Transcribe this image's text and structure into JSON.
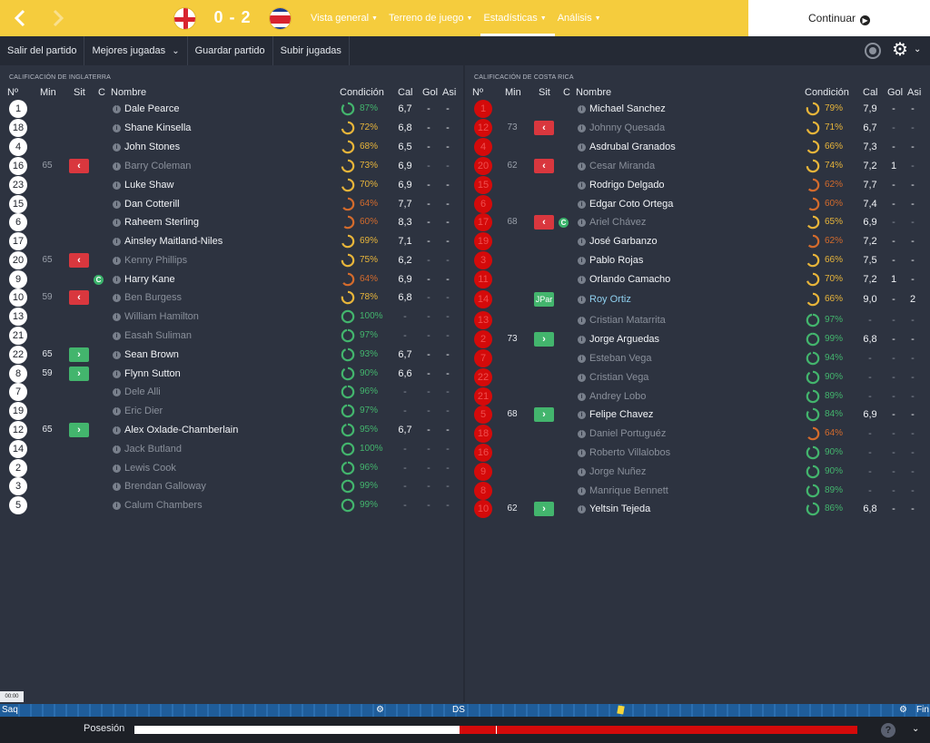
{
  "header": {
    "score": "0 - 2",
    "home_flag": "england-flag",
    "away_flag": "costa-rica-flag",
    "nav": [
      {
        "label": "Vista general",
        "active": false
      },
      {
        "label": "Terreno de juego",
        "active": false
      },
      {
        "label": "Estadísticas",
        "active": true
      },
      {
        "label": "Análisis",
        "active": false
      }
    ],
    "continue_label": "Continuar"
  },
  "toolbar": {
    "items": [
      "Salir del partido",
      "Mejores jugadas",
      "Guardar partido",
      "Subir jugadas"
    ]
  },
  "columns": {
    "no": "Nº",
    "min": "Min",
    "sit": "Sit",
    "cap": "C",
    "name": "Nombre",
    "condition": "Condición",
    "rating": "Cal",
    "goals": "Gol",
    "assists": "Asi"
  },
  "home": {
    "title": "Calificación de Inglaterra",
    "players": [
      {
        "no": "1",
        "min": "",
        "sit": "",
        "cap": false,
        "name": "Dale Pearce",
        "active": true,
        "cond": "87%",
        "condv": 0.87,
        "cal": "6,7",
        "gol": "-",
        "asi": "-"
      },
      {
        "no": "18",
        "min": "",
        "sit": "",
        "cap": false,
        "name": "Shane Kinsella",
        "active": true,
        "cond": "72%",
        "condv": 0.72,
        "cal": "6,8",
        "gol": "-",
        "asi": "-"
      },
      {
        "no": "4",
        "min": "",
        "sit": "",
        "cap": false,
        "name": "John Stones",
        "active": true,
        "cond": "68%",
        "condv": 0.68,
        "cal": "6,5",
        "gol": "-",
        "asi": "-"
      },
      {
        "no": "16",
        "min": "65",
        "sit": "out",
        "cap": false,
        "name": "Barry Coleman",
        "active": false,
        "cond": "73%",
        "condv": 0.73,
        "cal": "6,9",
        "gol": "-",
        "asi": "-"
      },
      {
        "no": "23",
        "min": "",
        "sit": "",
        "cap": false,
        "name": "Luke Shaw",
        "active": true,
        "cond": "70%",
        "condv": 0.7,
        "cal": "6,9",
        "gol": "-",
        "asi": "-"
      },
      {
        "no": "15",
        "min": "",
        "sit": "",
        "cap": false,
        "name": "Dan Cotterill",
        "active": true,
        "cond": "64%",
        "condv": 0.64,
        "cal": "7,7",
        "gol": "-",
        "asi": "-"
      },
      {
        "no": "6",
        "min": "",
        "sit": "",
        "cap": false,
        "name": "Raheem Sterling",
        "active": true,
        "cond": "60%",
        "condv": 0.6,
        "cal": "8,3",
        "gol": "-",
        "asi": "-"
      },
      {
        "no": "17",
        "min": "",
        "sit": "",
        "cap": false,
        "name": "Ainsley Maitland-Niles",
        "active": true,
        "cond": "69%",
        "condv": 0.69,
        "cal": "7,1",
        "gol": "-",
        "asi": "-"
      },
      {
        "no": "20",
        "min": "65",
        "sit": "out",
        "cap": false,
        "name": "Kenny Phillips",
        "active": false,
        "cond": "75%",
        "condv": 0.75,
        "cal": "6,2",
        "gol": "-",
        "asi": "-"
      },
      {
        "no": "9",
        "min": "",
        "sit": "",
        "cap": true,
        "name": "Harry Kane",
        "active": true,
        "cond": "64%",
        "condv": 0.64,
        "cal": "6,9",
        "gol": "-",
        "asi": "-"
      },
      {
        "no": "10",
        "min": "59",
        "sit": "out",
        "cap": false,
        "name": "Ben Burgess",
        "active": false,
        "cond": "78%",
        "condv": 0.78,
        "cal": "6,8",
        "gol": "-",
        "asi": "-"
      },
      {
        "no": "13",
        "min": "",
        "sit": "",
        "cap": false,
        "name": "William Hamilton",
        "active": false,
        "cond": "100%",
        "condv": 1.0,
        "cal": "-",
        "gol": "-",
        "asi": "-"
      },
      {
        "no": "21",
        "min": "",
        "sit": "",
        "cap": false,
        "name": "Easah Suliman",
        "active": false,
        "cond": "97%",
        "condv": 0.97,
        "cal": "-",
        "gol": "-",
        "asi": "-"
      },
      {
        "no": "22",
        "min": "65",
        "sit": "in",
        "cap": false,
        "name": "Sean Brown",
        "active": true,
        "cond": "93%",
        "condv": 0.93,
        "cal": "6,7",
        "gol": "-",
        "asi": "-"
      },
      {
        "no": "8",
        "min": "59",
        "sit": "in",
        "cap": false,
        "name": "Flynn Sutton",
        "active": true,
        "cond": "90%",
        "condv": 0.9,
        "cal": "6,6",
        "gol": "-",
        "asi": "-"
      },
      {
        "no": "7",
        "min": "",
        "sit": "",
        "cap": false,
        "name": "Dele Alli",
        "active": false,
        "cond": "96%",
        "condv": 0.96,
        "cal": "-",
        "gol": "-",
        "asi": "-"
      },
      {
        "no": "19",
        "min": "",
        "sit": "",
        "cap": false,
        "name": "Eric Dier",
        "active": false,
        "cond": "97%",
        "condv": 0.97,
        "cal": "-",
        "gol": "-",
        "asi": "-"
      },
      {
        "no": "12",
        "min": "65",
        "sit": "in",
        "cap": false,
        "name": "Alex Oxlade-Chamberlain",
        "active": true,
        "cond": "95%",
        "condv": 0.95,
        "cal": "6,7",
        "gol": "-",
        "asi": "-"
      },
      {
        "no": "14",
        "min": "",
        "sit": "",
        "cap": false,
        "name": "Jack Butland",
        "active": false,
        "cond": "100%",
        "condv": 1.0,
        "cal": "-",
        "gol": "-",
        "asi": "-"
      },
      {
        "no": "2",
        "min": "",
        "sit": "",
        "cap": false,
        "name": "Lewis Cook",
        "active": false,
        "cond": "96%",
        "condv": 0.96,
        "cal": "-",
        "gol": "-",
        "asi": "-"
      },
      {
        "no": "3",
        "min": "",
        "sit": "",
        "cap": false,
        "name": "Brendan Galloway",
        "active": false,
        "cond": "99%",
        "condv": 0.99,
        "cal": "-",
        "gol": "-",
        "asi": "-"
      },
      {
        "no": "5",
        "min": "",
        "sit": "",
        "cap": false,
        "name": "Calum Chambers",
        "active": false,
        "cond": "99%",
        "condv": 0.99,
        "cal": "-",
        "gol": "-",
        "asi": "-"
      }
    ]
  },
  "away": {
    "title": "Calificación de Costa Rica",
    "players": [
      {
        "no": "1",
        "min": "",
        "sit": "",
        "cap": false,
        "name": "Michael Sanchez",
        "active": true,
        "cond": "79%",
        "condv": 0.79,
        "cal": "7,9",
        "gol": "-",
        "asi": "-"
      },
      {
        "no": "12",
        "min": "73",
        "sit": "out",
        "cap": false,
        "name": "Johnny Quesada",
        "active": false,
        "cond": "71%",
        "condv": 0.71,
        "cal": "6,7",
        "gol": "-",
        "asi": "-"
      },
      {
        "no": "4",
        "min": "",
        "sit": "",
        "cap": false,
        "name": "Asdrubal Granados",
        "active": true,
        "cond": "66%",
        "condv": 0.66,
        "cal": "7,3",
        "gol": "-",
        "asi": "-"
      },
      {
        "no": "20",
        "min": "62",
        "sit": "out",
        "cap": false,
        "name": "Cesar Miranda",
        "active": false,
        "cond": "74%",
        "condv": 0.74,
        "cal": "7,2",
        "gol": "1",
        "asi": "-"
      },
      {
        "no": "15",
        "min": "",
        "sit": "",
        "cap": false,
        "name": "Rodrigo Delgado",
        "active": true,
        "cond": "62%",
        "condv": 0.62,
        "cal": "7,7",
        "gol": "-",
        "asi": "-"
      },
      {
        "no": "6",
        "min": "",
        "sit": "",
        "cap": false,
        "name": "Edgar Coto Ortega",
        "active": true,
        "cond": "60%",
        "condv": 0.6,
        "cal": "7,4",
        "gol": "-",
        "asi": "-"
      },
      {
        "no": "17",
        "min": "68",
        "sit": "out",
        "cap": true,
        "name": "Ariel Chávez",
        "active": false,
        "cond": "65%",
        "condv": 0.65,
        "cal": "6,9",
        "gol": "-",
        "asi": "-"
      },
      {
        "no": "19",
        "min": "",
        "sit": "",
        "cap": false,
        "name": "José Garbanzo",
        "active": true,
        "cond": "62%",
        "condv": 0.62,
        "cal": "7,2",
        "gol": "-",
        "asi": "-"
      },
      {
        "no": "3",
        "min": "",
        "sit": "",
        "cap": false,
        "name": "Pablo Rojas",
        "active": true,
        "cond": "66%",
        "condv": 0.66,
        "cal": "7,5",
        "gol": "-",
        "asi": "-"
      },
      {
        "no": "11",
        "min": "",
        "sit": "",
        "cap": false,
        "name": "Orlando Camacho",
        "active": true,
        "cond": "70%",
        "condv": 0.7,
        "cal": "7,2",
        "gol": "1",
        "asi": "-"
      },
      {
        "no": "14",
        "min": "",
        "sit": "JPar",
        "cap": false,
        "name": "Roy Ortiz",
        "active": true,
        "highlight": true,
        "cond": "66%",
        "condv": 0.66,
        "cal": "9,0",
        "gol": "-",
        "asi": "2"
      },
      {
        "no": "13",
        "min": "",
        "sit": "",
        "cap": false,
        "name": "Cristian Matarrita",
        "active": false,
        "cond": "97%",
        "condv": 0.97,
        "cal": "-",
        "gol": "-",
        "asi": "-"
      },
      {
        "no": "2",
        "min": "73",
        "sit": "in",
        "cap": false,
        "name": "Jorge Arguedas",
        "active": true,
        "cond": "99%",
        "condv": 0.99,
        "cal": "6,8",
        "gol": "-",
        "asi": "-"
      },
      {
        "no": "7",
        "min": "",
        "sit": "",
        "cap": false,
        "name": "Esteban Vega",
        "active": false,
        "cond": "94%",
        "condv": 0.94,
        "cal": "-",
        "gol": "-",
        "asi": "-"
      },
      {
        "no": "22",
        "min": "",
        "sit": "",
        "cap": false,
        "name": "Cristian Vega",
        "active": false,
        "cond": "90%",
        "condv": 0.9,
        "cal": "-",
        "gol": "-",
        "asi": "-"
      },
      {
        "no": "21",
        "min": "",
        "sit": "",
        "cap": false,
        "name": "Andrey Lobo",
        "active": false,
        "cond": "89%",
        "condv": 0.89,
        "cal": "-",
        "gol": "-",
        "asi": "-"
      },
      {
        "no": "5",
        "min": "68",
        "sit": "in",
        "cap": false,
        "name": "Felipe Chavez",
        "active": true,
        "cond": "84%",
        "condv": 0.84,
        "cal": "6,9",
        "gol": "-",
        "asi": "-"
      },
      {
        "no": "18",
        "min": "",
        "sit": "",
        "cap": false,
        "name": "Daniel Portuguéz",
        "active": false,
        "cond": "64%",
        "condv": 0.64,
        "cal": "-",
        "gol": "-",
        "asi": "-"
      },
      {
        "no": "16",
        "min": "",
        "sit": "",
        "cap": false,
        "name": "Roberto Villalobos",
        "active": false,
        "cond": "90%",
        "condv": 0.9,
        "cal": "-",
        "gol": "-",
        "asi": "-"
      },
      {
        "no": "9",
        "min": "",
        "sit": "",
        "cap": false,
        "name": "Jorge Nuñez",
        "active": false,
        "cond": "90%",
        "condv": 0.9,
        "cal": "-",
        "gol": "-",
        "asi": "-"
      },
      {
        "no": "8",
        "min": "",
        "sit": "",
        "cap": false,
        "name": "Manrique Bennett",
        "active": false,
        "cond": "89%",
        "condv": 0.89,
        "cal": "-",
        "gol": "-",
        "asi": "-"
      },
      {
        "no": "10",
        "min": "62",
        "sit": "in",
        "cap": false,
        "name": "Yeltsin Tejeda",
        "active": true,
        "cond": "86%",
        "condv": 0.86,
        "cal": "6,8",
        "gol": "-",
        "asi": "-"
      }
    ]
  },
  "timeline": {
    "time": "00:00",
    "start": "Saq",
    "half": "DS",
    "end": "Fin"
  },
  "possession": {
    "label": "Posesión",
    "home_share": 0.45
  },
  "colors": {
    "accent": "#f5cc3d",
    "away_red": "#d40a0a",
    "sub_in": "#43b56d",
    "sub_out": "#d9373e",
    "cond_high": "#43b56d",
    "cond_mid": "#e8b53a",
    "cond_low": "#d46b2c"
  }
}
